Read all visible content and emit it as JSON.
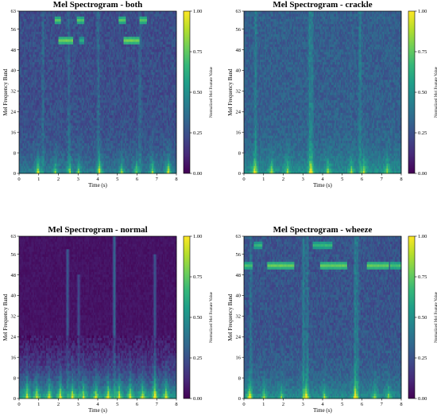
{
  "figure": {
    "colormap": "viridis",
    "colormap_stops": [
      "#440154",
      "#472878",
      "#3e4989",
      "#31688e",
      "#26828e",
      "#1f9e89",
      "#35b779",
      "#6ece58",
      "#b5de2b",
      "#fde725"
    ]
  },
  "chart_data": [
    {
      "type": "heatmap",
      "title": "Mel Spectrogram - both",
      "xlabel": "Time (s)",
      "ylabel": "Mel Frequency Band",
      "xlim": [
        0,
        8
      ],
      "ylim": [
        0,
        63
      ],
      "xticks": [
        "0",
        "1",
        "2",
        "3",
        "4",
        "5",
        "6",
        "7",
        "8"
      ],
      "yticks": [
        "0",
        "8",
        "16",
        "24",
        "32",
        "40",
        "48",
        "56",
        "63"
      ],
      "colorbar": {
        "label": "Normalized Mel Feature Value",
        "range": [
          0.0,
          1.0
        ],
        "ticks": [
          "0.00",
          "0.25",
          "0.50",
          "0.75",
          "1.00"
        ]
      },
      "background_level": 0.24,
      "low_band_emphasis": 0.18,
      "bursts": [
        {
          "t": 0.95,
          "strength": 0.62
        },
        {
          "t": 1.85,
          "strength": 0.4
        },
        {
          "t": 2.6,
          "strength": 0.38
        },
        {
          "t": 3.05,
          "strength": 0.4
        },
        {
          "t": 4.1,
          "strength": 0.6
        },
        {
          "t": 5.2,
          "strength": 0.45
        },
        {
          "t": 6.0,
          "strength": 0.42
        },
        {
          "t": 6.8,
          "strength": 0.48
        },
        {
          "t": 7.6,
          "strength": 0.62
        }
      ],
      "tonal_segments": [
        {
          "t_start": 1.8,
          "t_end": 2.1,
          "band": 60,
          "level": 0.72
        },
        {
          "t_start": 2.95,
          "t_end": 3.25,
          "band": 60,
          "level": 0.72
        },
        {
          "t_start": 5.1,
          "t_end": 5.4,
          "band": 60,
          "level": 0.72
        },
        {
          "t_start": 6.2,
          "t_end": 6.5,
          "band": 60,
          "level": 0.72
        },
        {
          "t_start": 2.0,
          "t_end": 2.7,
          "band": 52,
          "level": 0.78
        },
        {
          "t_start": 5.35,
          "t_end": 6.1,
          "band": 52,
          "level": 0.78
        },
        {
          "t_start": 3.1,
          "t_end": 3.25,
          "band": 52,
          "level": 0.6
        }
      ],
      "vertical_streaks": [
        {
          "t": 1.2,
          "level": 0.4
        },
        {
          "t": 2.55,
          "level": 0.38
        },
        {
          "t": 4.05,
          "level": 0.4
        },
        {
          "t": 6.2,
          "level": 0.38
        }
      ]
    },
    {
      "type": "heatmap",
      "title": "Mel Spectrogram - crackle",
      "xlabel": "Time (s)",
      "ylabel": "Mel Frequency Band",
      "xlim": [
        0,
        8
      ],
      "ylim": [
        0,
        63
      ],
      "xticks": [
        "0",
        "1",
        "2",
        "3",
        "4",
        "5",
        "6",
        "7",
        "8"
      ],
      "yticks": [
        "0",
        "8",
        "16",
        "24",
        "32",
        "40",
        "48",
        "56",
        "63"
      ],
      "colorbar": {
        "label": "Normalized Mel Feature Value",
        "range": [
          0.0,
          1.0
        ],
        "ticks": [
          "0.00",
          "0.25",
          "0.50",
          "0.75",
          "1.00"
        ]
      },
      "background_level": 0.3,
      "low_band_emphasis": 0.2,
      "bursts": [
        {
          "t": 0.5,
          "strength": 0.55
        },
        {
          "t": 1.4,
          "strength": 0.4
        },
        {
          "t": 2.2,
          "strength": 0.38
        },
        {
          "t": 3.4,
          "strength": 0.55
        },
        {
          "t": 4.3,
          "strength": 0.42
        },
        {
          "t": 5.5,
          "strength": 0.4
        },
        {
          "t": 6.1,
          "strength": 0.5
        },
        {
          "t": 7.3,
          "strength": 0.38
        }
      ],
      "tonal_segments": [],
      "vertical_streaks": [
        {
          "t": 0.55,
          "level": 0.5
        },
        {
          "t": 3.35,
          "level": 0.55
        },
        {
          "t": 3.45,
          "level": 0.45
        },
        {
          "t": 5.9,
          "level": 0.5
        }
      ]
    },
    {
      "type": "heatmap",
      "title": "Mel Spectrogram - normal",
      "xlabel": "Time (s)",
      "ylabel": "Mel Frequency Band",
      "xlim": [
        0,
        8
      ],
      "ylim": [
        0,
        63
      ],
      "xticks": [
        "0",
        "1",
        "2",
        "3",
        "4",
        "5",
        "6",
        "7",
        "8"
      ],
      "yticks": [
        "0",
        "8",
        "16",
        "24",
        "32",
        "40",
        "48",
        "56",
        "63"
      ],
      "colorbar": {
        "label": "Normalized Mel Feature Value",
        "range": [
          0.0,
          1.0
        ],
        "ticks": [
          "0.00",
          "0.25",
          "0.50",
          "0.75",
          "1.00"
        ]
      },
      "background_level": 0.05,
      "energy_cutoff_band": 24,
      "low_band_emphasis": 0.38,
      "bursts": [
        {
          "t": 0.4,
          "strength": 0.5
        },
        {
          "t": 0.9,
          "strength": 0.45
        },
        {
          "t": 1.5,
          "strength": 0.45
        },
        {
          "t": 2.05,
          "strength": 0.5
        },
        {
          "t": 2.7,
          "strength": 0.5
        },
        {
          "t": 3.3,
          "strength": 0.45
        },
        {
          "t": 3.9,
          "strength": 0.45
        },
        {
          "t": 4.55,
          "strength": 0.55
        },
        {
          "t": 5.1,
          "strength": 0.5
        },
        {
          "t": 5.7,
          "strength": 0.5
        },
        {
          "t": 6.3,
          "strength": 0.45
        },
        {
          "t": 6.9,
          "strength": 0.5
        },
        {
          "t": 7.5,
          "strength": 0.45
        }
      ],
      "tonal_segments": [],
      "vertical_streaks": [
        {
          "t": 2.45,
          "level": 0.45,
          "top_band": 58
        },
        {
          "t": 3.05,
          "level": 0.35,
          "top_band": 48
        },
        {
          "t": 4.85,
          "level": 0.55,
          "top_band": 63
        },
        {
          "t": 6.95,
          "level": 0.42,
          "top_band": 56
        }
      ]
    },
    {
      "type": "heatmap",
      "title": "Mel Spectrogram - wheeze",
      "xlabel": "Time (s)",
      "ylabel": "Mel Frequency Band",
      "xlim": [
        0,
        8
      ],
      "ylim": [
        0,
        63
      ],
      "xticks": [
        "0",
        "1",
        "2",
        "3",
        "4",
        "5",
        "6",
        "7",
        "8"
      ],
      "yticks": [
        "0",
        "8",
        "16",
        "24",
        "32",
        "40",
        "48",
        "56",
        "63"
      ],
      "colorbar": {
        "label": "Normalized Mel Feature Value",
        "range": [
          0.0,
          1.0
        ],
        "ticks": [
          "0.00",
          "0.25",
          "0.50",
          "0.75",
          "1.00"
        ]
      },
      "background_level": 0.26,
      "low_band_emphasis": 0.22,
      "bursts": [
        {
          "t": 0.25,
          "strength": 0.62
        },
        {
          "t": 1.0,
          "strength": 0.4
        },
        {
          "t": 1.9,
          "strength": 0.38
        },
        {
          "t": 3.15,
          "strength": 0.62
        },
        {
          "t": 4.1,
          "strength": 0.4
        },
        {
          "t": 5.7,
          "strength": 0.62
        },
        {
          "t": 6.7,
          "strength": 0.38
        },
        {
          "t": 7.4,
          "strength": 0.4
        }
      ],
      "tonal_segments": [
        {
          "t_start": 0.0,
          "t_end": 0.4,
          "band": 52,
          "level": 0.7
        },
        {
          "t_start": 0.5,
          "t_end": 0.9,
          "band": 60,
          "level": 0.66
        },
        {
          "t_start": 1.2,
          "t_end": 2.5,
          "band": 52,
          "level": 0.76
        },
        {
          "t_start": 3.5,
          "t_end": 4.5,
          "band": 60,
          "level": 0.66
        },
        {
          "t_start": 3.9,
          "t_end": 5.2,
          "band": 52,
          "level": 0.76
        },
        {
          "t_start": 6.3,
          "t_end": 7.4,
          "band": 52,
          "level": 0.76
        },
        {
          "t_start": 7.5,
          "t_end": 8.0,
          "band": 52,
          "level": 0.7
        }
      ],
      "vertical_streaks": [
        {
          "t": 0.3,
          "level": 0.48
        },
        {
          "t": 3.05,
          "level": 0.62
        },
        {
          "t": 3.2,
          "level": 0.55
        },
        {
          "t": 5.65,
          "level": 0.62
        },
        {
          "t": 5.8,
          "level": 0.5
        }
      ]
    }
  ]
}
